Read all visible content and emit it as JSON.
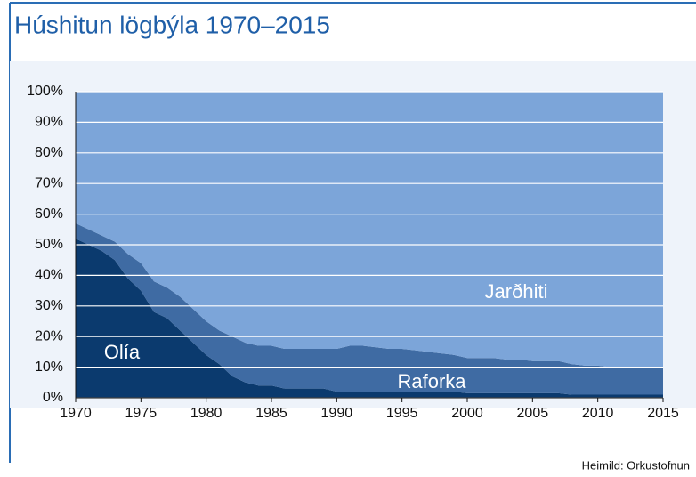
{
  "chart_data": {
    "type": "stacked_area",
    "title": "Húshitun lögbýla 1970–2015",
    "source": "Heimild: Orkustofnun",
    "x": [
      1970,
      1971,
      1972,
      1973,
      1974,
      1975,
      1976,
      1977,
      1978,
      1979,
      1980,
      1981,
      1982,
      1983,
      1984,
      1985,
      1986,
      1987,
      1988,
      1989,
      1990,
      1991,
      1992,
      1993,
      1994,
      1995,
      1996,
      1997,
      1998,
      1999,
      2000,
      2001,
      2002,
      2003,
      2004,
      2005,
      2006,
      2007,
      2008,
      2009,
      2010,
      2011,
      2012,
      2013,
      2014,
      2015
    ],
    "series": [
      {
        "name": "Olía",
        "color": "#0b3a6e",
        "values": [
          52,
          50,
          48,
          45,
          39,
          35,
          28,
          26,
          22,
          18,
          14,
          11,
          7,
          5,
          4,
          4,
          3,
          3,
          3,
          3,
          2,
          2,
          2,
          2,
          2,
          2,
          2,
          2,
          2,
          2,
          1.5,
          1.5,
          1.5,
          1.5,
          1.5,
          1.5,
          1.5,
          1.5,
          1,
          1,
          1,
          1,
          1,
          1,
          1,
          1
        ]
      },
      {
        "name": "Raforka",
        "color": "#3f6ba3",
        "values": [
          5,
          5,
          5,
          6,
          8,
          9,
          10,
          10,
          11,
          11,
          11,
          11,
          13,
          13,
          13,
          13,
          13,
          13,
          13,
          13,
          14,
          15,
          15,
          14.5,
          14,
          14,
          13.5,
          13,
          12.5,
          12,
          11.5,
          11.5,
          11.5,
          11,
          11,
          10.5,
          10.5,
          10.5,
          10,
          9.5,
          9.5,
          9,
          9,
          9,
          9,
          9
        ]
      },
      {
        "name": "Jarðhiti",
        "color": "#7ca5d9",
        "values": [
          43,
          45,
          47,
          49,
          53,
          56,
          62,
          64,
          67,
          71,
          75,
          78,
          80,
          82,
          83,
          83,
          84,
          84,
          84,
          84,
          84,
          83,
          83,
          83.5,
          84,
          84,
          84.5,
          85,
          85.5,
          86,
          87,
          87,
          87,
          87.5,
          87.5,
          88,
          88,
          88,
          89,
          89.5,
          89.5,
          90,
          90,
          90,
          90,
          90
        ]
      }
    ],
    "xlim": [
      1970,
      2015
    ],
    "xticks": [
      1970,
      1975,
      1980,
      1985,
      1990,
      1995,
      2000,
      2005,
      2010,
      2015
    ],
    "ylim": [
      0,
      100
    ],
    "yticks": [
      {
        "value": 0,
        "label": "0%"
      },
      {
        "value": 10,
        "label": "10%"
      },
      {
        "value": 20,
        "label": "20%"
      },
      {
        "value": 30,
        "label": "30%"
      },
      {
        "value": 40,
        "label": "40%"
      },
      {
        "value": 50,
        "label": "50%"
      },
      {
        "value": 60,
        "label": "60%"
      },
      {
        "value": 70,
        "label": "70%"
      },
      {
        "value": 80,
        "label": "80%"
      },
      {
        "value": 90,
        "label": "90%"
      },
      {
        "value": 100,
        "label": "100%"
      }
    ],
    "grid": true
  }
}
